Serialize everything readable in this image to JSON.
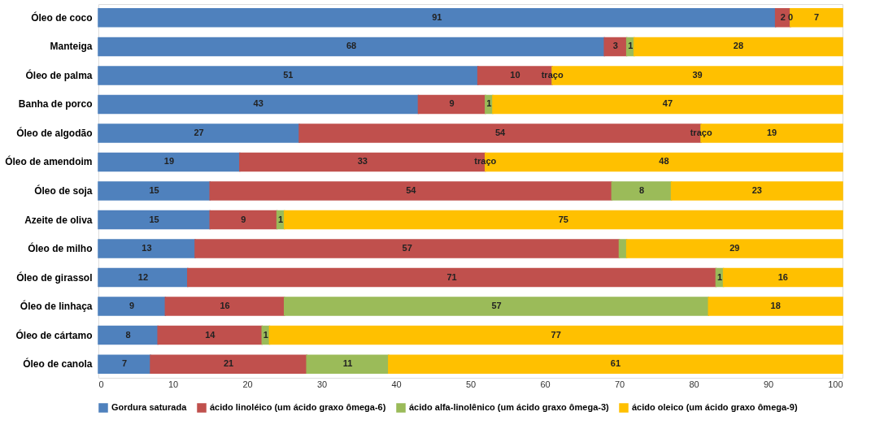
{
  "chart_data": {
    "type": "bar",
    "orientation": "horizontal",
    "stacked": true,
    "categories": [
      "Óleo de coco",
      "Manteiga",
      "Óleo de palma",
      "Banha de porco",
      "Óleo de algodão",
      "Óleo de amendoim",
      "Óleo de soja",
      "Azeite de oliva",
      "Óleo de milho",
      "Óleo de girassol",
      "Óleo de linhaça",
      "Óleo de cártamo",
      "Óleo de canola"
    ],
    "series": [
      {
        "name": "Gordura saturada",
        "color": "#4f81bd",
        "values": [
          91,
          68,
          51,
          43,
          27,
          19,
          15,
          15,
          13,
          12,
          9,
          8,
          7
        ],
        "value_labels": [
          "91",
          "68",
          "51",
          "43",
          "27",
          "19",
          "15",
          "15",
          "13",
          "12",
          "9",
          "8",
          "7"
        ]
      },
      {
        "name": "ácido linoléico (um ácido graxo ômega-6)",
        "color": "#c0504d",
        "values": [
          2,
          3,
          10,
          9,
          54,
          33,
          54,
          9,
          57,
          71,
          16,
          14,
          21
        ],
        "value_labels": [
          "2",
          "3",
          "10",
          "9",
          "54",
          "33",
          "54",
          "9",
          "57",
          "71",
          "16",
          "14",
          "21"
        ]
      },
      {
        "name": "ácido alfa-linolênico (um ácido graxo ômega-3)",
        "color": "#9bbb59",
        "values": [
          0,
          1,
          0,
          1,
          0,
          0,
          8,
          1,
          1,
          1,
          57,
          1,
          11
        ],
        "value_labels": [
          "0",
          "1",
          "traço",
          "1",
          "traço",
          "traço",
          "8",
          "1",
          null,
          "1",
          "57",
          "1",
          "11"
        ]
      },
      {
        "name": "ácido oleico (um ácido graxo ômega-9)",
        "color": "#ffc000",
        "values": [
          7,
          28,
          39,
          47,
          19,
          48,
          23,
          75,
          29,
          16,
          18,
          77,
          61
        ],
        "value_labels": [
          "7",
          "28",
          "39",
          "47",
          "19",
          "48",
          "23",
          "75",
          "29",
          "16",
          "18",
          "77",
          "61"
        ]
      }
    ],
    "xlim": [
      0,
      100
    ],
    "xticks": [
      0,
      10,
      20,
      30,
      40,
      50,
      60,
      70,
      80,
      90,
      100
    ],
    "grid": false,
    "legend": "bottom"
  }
}
